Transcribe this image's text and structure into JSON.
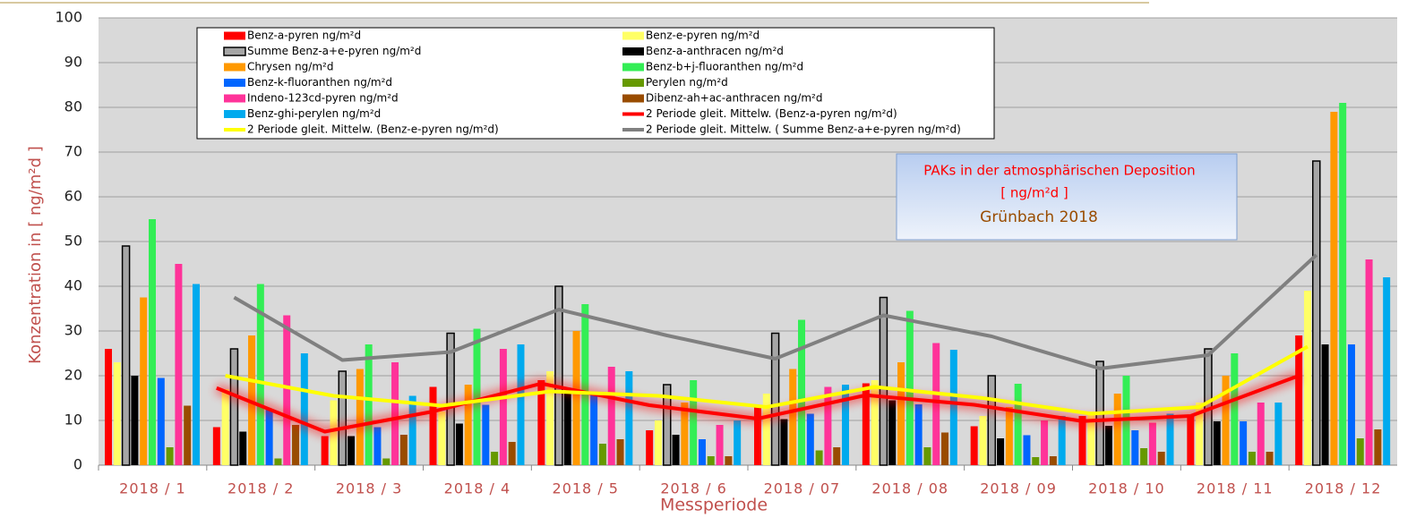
{
  "chart_data": {
    "type": "bar",
    "y_label": "Konzentration in [ ng/m²d ]",
    "x_label": "Messperiode",
    "annotations": [
      "PAKs in der atmosphärischen Deposition",
      "[ ng/m²d ]",
      "Grünbach 2018"
    ],
    "categories": [
      "2018 / 1",
      "2018 / 2",
      "2018 / 3",
      "2018 / 4",
      "2018 / 5",
      "2018 / 6",
      "2018 / 07",
      "2018 / 08",
      "2018 / 09",
      "2018 / 10",
      "2018 / 11",
      "2018 / 12"
    ],
    "ylim": [
      0,
      100
    ],
    "yticks": [
      0,
      10,
      20,
      30,
      40,
      50,
      60,
      70,
      80,
      90,
      100
    ],
    "grid": true,
    "series": [
      {
        "name": "Benz-a-pyren ng/m²d",
        "color": "#ff0000",
        "values": [
          26,
          8.5,
          6.5,
          17.5,
          19,
          7.8,
          13,
          18.3,
          8.7,
          11,
          11,
          29
        ]
      },
      {
        "name": "Benz-e-pyren ng/m²d",
        "color": "#ffff66",
        "values": [
          23,
          17,
          14.5,
          12,
          21,
          10,
          16,
          19,
          11,
          12,
          14,
          39
        ]
      },
      {
        "name": "Summe Benz-a+e-pyren ng/m²d",
        "color": "#a6a6a6",
        "values": [
          49,
          26,
          21,
          29.5,
          40,
          18,
          29.5,
          37.5,
          20,
          23.2,
          26,
          68
        ]
      },
      {
        "name": "Benz-a-anthracen ng/m²d",
        "color": "#000000",
        "values": [
          20,
          7.5,
          6.5,
          9.3,
          16.5,
          6.8,
          10.3,
          14.5,
          6,
          8.8,
          9.8,
          27
        ]
      },
      {
        "name": "Chrysen ng/m²d",
        "color": "#ff9900",
        "values": [
          37.5,
          29,
          21.5,
          18,
          30,
          14,
          21.5,
          23,
          13,
          16,
          20,
          79
        ]
      },
      {
        "name": "Benz-b+j-fluoranthen ng/m²d",
        "color": "#33ee55",
        "values": [
          55,
          40.5,
          27,
          30.5,
          36,
          19,
          32.5,
          34.5,
          18.2,
          20,
          25,
          81
        ]
      },
      {
        "name": "Benz-k-fluoranthen ng/m²d",
        "color": "#0066ff",
        "values": [
          19.5,
          12.5,
          8.5,
          13.5,
          16,
          5.8,
          11.5,
          13.6,
          6.7,
          7.8,
          9.8,
          27
        ]
      },
      {
        "name": "Perylen ng/m²d",
        "color": "#669900",
        "values": [
          4,
          1.5,
          1.5,
          3,
          4.8,
          2,
          3.3,
          4,
          1.8,
          3.8,
          3,
          6
        ]
      },
      {
        "name": "Indeno-123cd-pyren ng/m²d",
        "color": "#ff3399",
        "values": [
          45,
          33.5,
          23,
          26,
          22,
          9,
          17.5,
          27.3,
          10,
          9.5,
          14,
          46
        ]
      },
      {
        "name": "Dibenz-ah+ac-anthracen ng/m²d",
        "color": "#994c00",
        "values": [
          13.3,
          9,
          6.8,
          5.2,
          5.8,
          2,
          4,
          7.3,
          2,
          3,
          3,
          8
        ]
      },
      {
        "name": "Benz-ghi-perylen ng/m²d",
        "color": "#00aaee",
        "values": [
          40.5,
          25,
          15.5,
          27,
          21,
          10,
          18,
          25.8,
          11,
          11.5,
          14,
          42
        ]
      },
      {
        "name": "2 Periode gleit. Mittelw. (Benz-a-pyren ng/m²d)",
        "type": "line",
        "color": "#ff0000",
        "values": [
          null,
          17.25,
          7.5,
          12,
          18.25,
          13.4,
          10.4,
          15.65,
          13.5,
          9.85,
          11,
          20
        ]
      },
      {
        "name": "2 Periode gleit. Mittelw. (Benz-e-pyren ng/m²d)",
        "type": "line",
        "color": "#ffff00",
        "values": [
          null,
          20,
          15.5,
          13.3,
          16.5,
          15.5,
          13,
          17.5,
          15,
          11.5,
          13,
          26.5
        ]
      },
      {
        "name": "2 Periode gleit. Mittelw. ( Summe Benz-a+e-pyren ng/m²d)",
        "type": "line",
        "color": "#808080",
        "values": [
          null,
          37.5,
          23.5,
          25.3,
          34.8,
          29,
          23.8,
          33.5,
          28.8,
          21.6,
          24.6,
          47
        ]
      }
    ]
  }
}
